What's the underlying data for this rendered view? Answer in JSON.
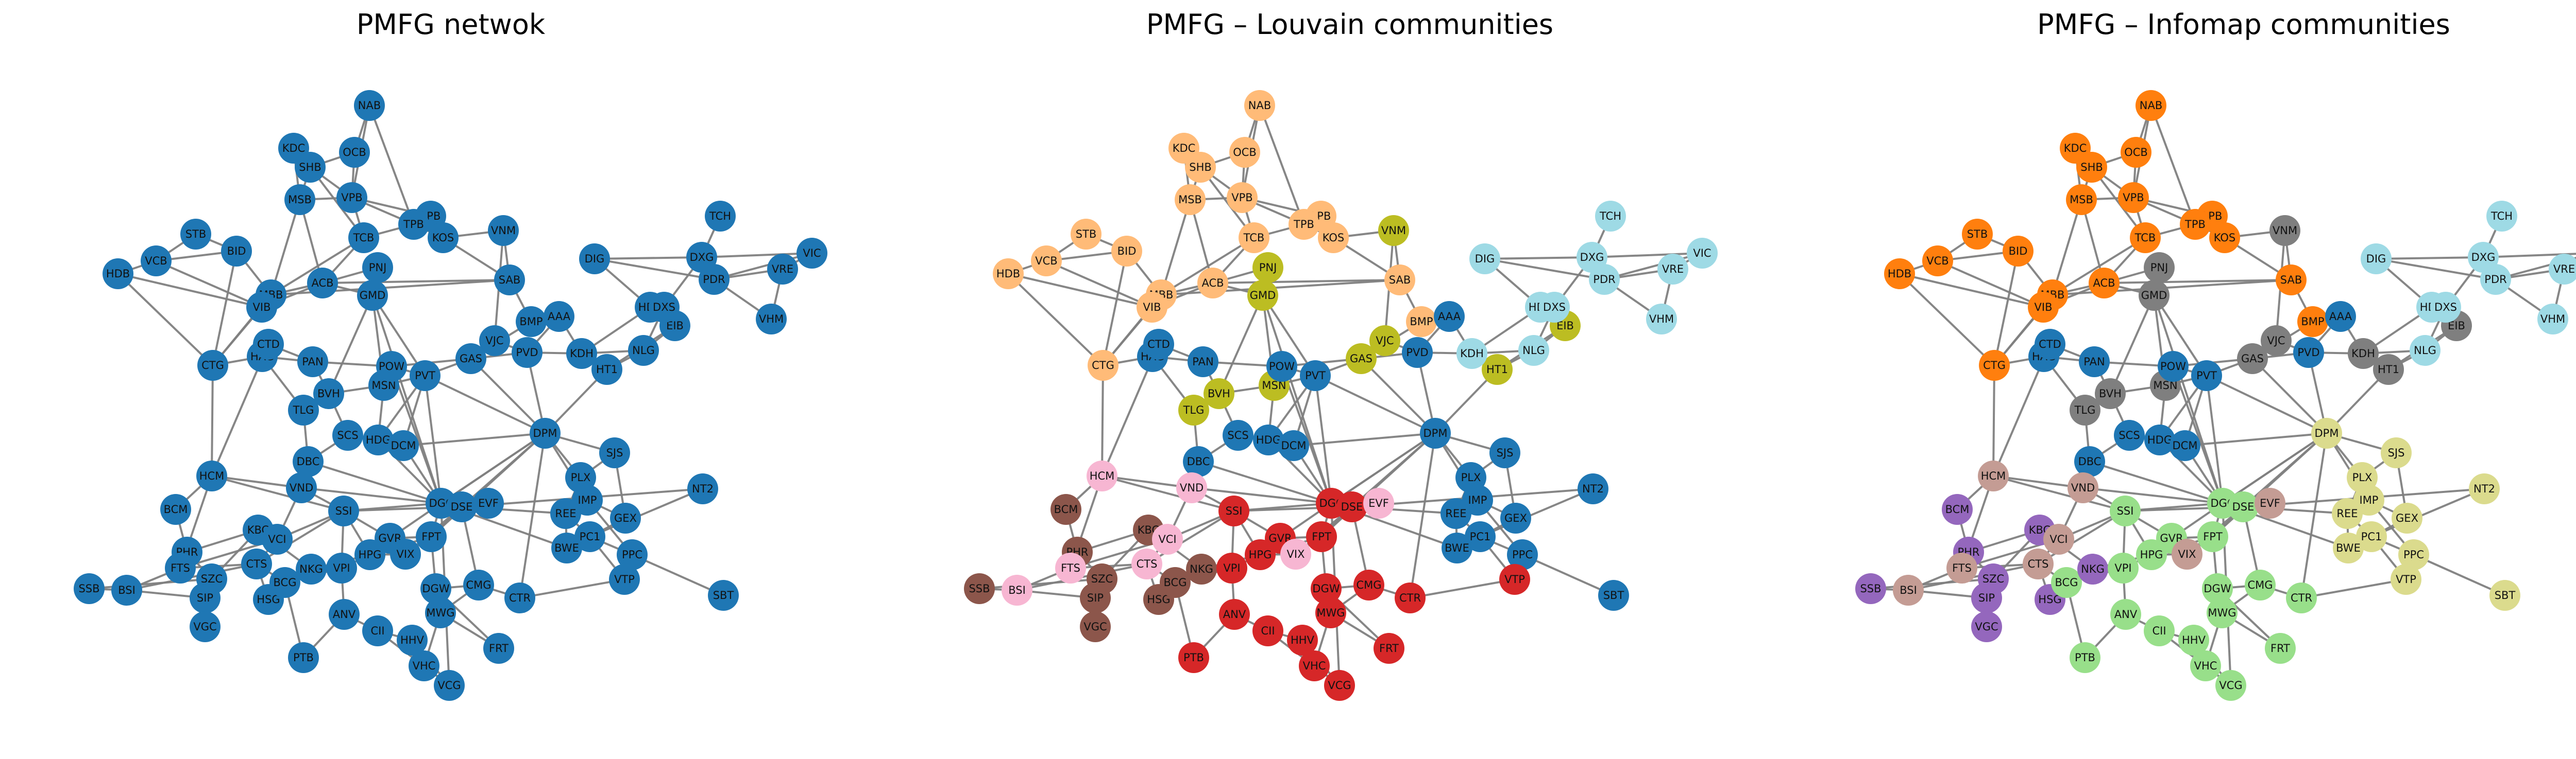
{
  "panels": [
    {
      "title": "PMFG netwok",
      "coloring": "none"
    },
    {
      "title": "PMFG – Louvain communities",
      "coloring": "louvain"
    },
    {
      "title": "PMFG – Infomap communities",
      "coloring": "infomap"
    }
  ],
  "colors": {
    "default": "#1f77b4",
    "tab20": {
      "blue": "#1f77b4",
      "orange": "#ff7f0e",
      "peach": "#ffbb78",
      "lightgreen": "#98df8a",
      "red": "#d62728",
      "purple": "#9467bd",
      "brown": "#8c564b",
      "tan": "#c49c94",
      "pink": "#f7b6d2",
      "gray": "#7f7f7f",
      "olive": "#bcbd22",
      "khaki": "#dbdb8d",
      "cyan": "#9edae5"
    },
    "edge": "#808080"
  },
  "nodes": [
    {
      "id": "NAB",
      "louvain": "peach",
      "infomap": "orange"
    },
    {
      "id": "KDC",
      "louvain": "peach",
      "infomap": "orange"
    },
    {
      "id": "OCB",
      "louvain": "peach",
      "infomap": "orange"
    },
    {
      "id": "SHB",
      "louvain": "peach",
      "infomap": "orange"
    },
    {
      "id": "MSB",
      "louvain": "peach",
      "infomap": "orange"
    },
    {
      "id": "VPB",
      "louvain": "peach",
      "infomap": "orange"
    },
    {
      "id": "LPB",
      "louvain": "peach",
      "infomap": "orange"
    },
    {
      "id": "TPB",
      "louvain": "peach",
      "infomap": "orange"
    },
    {
      "id": "TCB",
      "louvain": "peach",
      "infomap": "orange"
    },
    {
      "id": "KOS",
      "louvain": "peach",
      "infomap": "orange"
    },
    {
      "id": "STB",
      "louvain": "peach",
      "infomap": "orange"
    },
    {
      "id": "BID",
      "louvain": "peach",
      "infomap": "orange"
    },
    {
      "id": "VCB",
      "louvain": "peach",
      "infomap": "orange"
    },
    {
      "id": "HDB",
      "louvain": "peach",
      "infomap": "orange"
    },
    {
      "id": "MBB",
      "louvain": "peach",
      "infomap": "orange"
    },
    {
      "id": "VIB",
      "louvain": "peach",
      "infomap": "orange"
    },
    {
      "id": "ACB",
      "louvain": "peach",
      "infomap": "orange"
    },
    {
      "id": "SAB",
      "louvain": "peach",
      "infomap": "orange"
    },
    {
      "id": "BMP",
      "louvain": "peach",
      "infomap": "orange"
    },
    {
      "id": "CTG",
      "louvain": "peach",
      "infomap": "orange"
    },
    {
      "id": "VNM",
      "louvain": "olive",
      "infomap": "gray"
    },
    {
      "id": "PNJ",
      "louvain": "olive",
      "infomap": "gray"
    },
    {
      "id": "GMD",
      "louvain": "olive",
      "infomap": "gray"
    },
    {
      "id": "VJC",
      "louvain": "olive",
      "infomap": "gray"
    },
    {
      "id": "GAS",
      "louvain": "olive",
      "infomap": "gray"
    },
    {
      "id": "BVH",
      "louvain": "olive",
      "infomap": "gray"
    },
    {
      "id": "TLG",
      "louvain": "olive",
      "infomap": "gray"
    },
    {
      "id": "MSN",
      "louvain": "olive",
      "infomap": "gray"
    },
    {
      "id": "HT1",
      "louvain": "olive",
      "infomap": "gray"
    },
    {
      "id": "EIB",
      "louvain": "olive",
      "infomap": "gray"
    },
    {
      "id": "KDH",
      "louvain": "cyan",
      "infomap": "gray"
    },
    {
      "id": "AAA",
      "louvain": "blue",
      "infomap": "blue"
    },
    {
      "id": "PVD",
      "louvain": "blue",
      "infomap": "blue"
    },
    {
      "id": "TCH",
      "louvain": "cyan",
      "infomap": "cyan"
    },
    {
      "id": "DIG",
      "louvain": "cyan",
      "infomap": "cyan"
    },
    {
      "id": "DXG",
      "louvain": "cyan",
      "infomap": "cyan"
    },
    {
      "id": "VIC",
      "louvain": "cyan",
      "infomap": "cyan"
    },
    {
      "id": "PDR",
      "louvain": "cyan",
      "infomap": "cyan"
    },
    {
      "id": "VRE",
      "louvain": "cyan",
      "infomap": "cyan"
    },
    {
      "id": "HDC",
      "louvain": "cyan",
      "infomap": "cyan"
    },
    {
      "id": "DXS",
      "louvain": "cyan",
      "infomap": "cyan"
    },
    {
      "id": "VHM",
      "louvain": "cyan",
      "infomap": "cyan"
    },
    {
      "id": "NLG",
      "louvain": "cyan",
      "infomap": "cyan"
    },
    {
      "id": "HAG",
      "louvain": "blue",
      "infomap": "blue"
    },
    {
      "id": "CTD",
      "louvain": "blue",
      "infomap": "blue"
    },
    {
      "id": "PAN",
      "louvain": "blue",
      "infomap": "blue"
    },
    {
      "id": "POW",
      "louvain": "blue",
      "infomap": "blue"
    },
    {
      "id": "PVT",
      "louvain": "blue",
      "infomap": "blue"
    },
    {
      "id": "SCS",
      "louvain": "blue",
      "infomap": "blue"
    },
    {
      "id": "HDG",
      "louvain": "blue",
      "infomap": "blue"
    },
    {
      "id": "DCM",
      "louvain": "blue",
      "infomap": "blue"
    },
    {
      "id": "DBC",
      "louvain": "blue",
      "infomap": "blue"
    },
    {
      "id": "DPM",
      "louvain": "blue",
      "infomap": "khaki"
    },
    {
      "id": "SJS",
      "louvain": "blue",
      "infomap": "khaki"
    },
    {
      "id": "PLX",
      "louvain": "blue",
      "infomap": "khaki"
    },
    {
      "id": "NT2",
      "louvain": "blue",
      "infomap": "khaki"
    },
    {
      "id": "IMP",
      "louvain": "blue",
      "infomap": "khaki"
    },
    {
      "id": "REE",
      "louvain": "blue",
      "infomap": "khaki"
    },
    {
      "id": "GEX",
      "louvain": "blue",
      "infomap": "khaki"
    },
    {
      "id": "PC1",
      "louvain": "blue",
      "infomap": "khaki"
    },
    {
      "id": "BWE",
      "louvain": "blue",
      "infomap": "khaki"
    },
    {
      "id": "PPC",
      "louvain": "blue",
      "infomap": "khaki"
    },
    {
      "id": "VTP",
      "louvain": "red",
      "infomap": "khaki"
    },
    {
      "id": "SBT",
      "louvain": "blue",
      "infomap": "khaki"
    },
    {
      "id": "HCM",
      "louvain": "pink",
      "infomap": "tan"
    },
    {
      "id": "VND",
      "louvain": "pink",
      "infomap": "tan"
    },
    {
      "id": "BCM",
      "louvain": "brown",
      "infomap": "purple"
    },
    {
      "id": "KBC",
      "louvain": "brown",
      "infomap": "purple"
    },
    {
      "id": "VCI",
      "louvain": "pink",
      "infomap": "tan"
    },
    {
      "id": "PHR",
      "louvain": "brown",
      "infomap": "purple"
    },
    {
      "id": "FTS",
      "louvain": "pink",
      "infomap": "tan"
    },
    {
      "id": "CTS",
      "louvain": "pink",
      "infomap": "tan"
    },
    {
      "id": "SZC",
      "louvain": "brown",
      "infomap": "purple"
    },
    {
      "id": "SIP",
      "louvain": "brown",
      "infomap": "purple"
    },
    {
      "id": "SSB",
      "louvain": "brown",
      "infomap": "purple"
    },
    {
      "id": "BSI",
      "louvain": "pink",
      "infomap": "tan"
    },
    {
      "id": "VGC",
      "louvain": "brown",
      "infomap": "purple"
    },
    {
      "id": "HSG",
      "louvain": "brown",
      "infomap": "purple"
    },
    {
      "id": "BCG",
      "louvain": "brown",
      "infomap": "lightgreen"
    },
    {
      "id": "NKG",
      "louvain": "brown",
      "infomap": "purple"
    },
    {
      "id": "VPI",
      "louvain": "red",
      "infomap": "lightgreen"
    },
    {
      "id": "SSI",
      "louvain": "red",
      "infomap": "lightgreen"
    },
    {
      "id": "GVR",
      "louvain": "red",
      "infomap": "lightgreen"
    },
    {
      "id": "HPG",
      "louvain": "red",
      "infomap": "lightgreen"
    },
    {
      "id": "VIX",
      "louvain": "pink",
      "infomap": "tan"
    },
    {
      "id": "FPT",
      "louvain": "red",
      "infomap": "lightgreen"
    },
    {
      "id": "DGC",
      "louvain": "red",
      "infomap": "lightgreen"
    },
    {
      "id": "DSE",
      "louvain": "red",
      "infomap": "lightgreen"
    },
    {
      "id": "EVF",
      "louvain": "pink",
      "infomap": "tan"
    },
    {
      "id": "ANV",
      "louvain": "red",
      "infomap": "lightgreen"
    },
    {
      "id": "DGW",
      "louvain": "red",
      "infomap": "lightgreen"
    },
    {
      "id": "CMG",
      "louvain": "red",
      "infomap": "lightgreen"
    },
    {
      "id": "MWG",
      "louvain": "red",
      "infomap": "lightgreen"
    },
    {
      "id": "CTR",
      "louvain": "red",
      "infomap": "lightgreen"
    },
    {
      "id": "CII",
      "louvain": "red",
      "infomap": "lightgreen"
    },
    {
      "id": "HHV",
      "louvain": "red",
      "infomap": "lightgreen"
    },
    {
      "id": "PTB",
      "louvain": "red",
      "infomap": "lightgreen"
    },
    {
      "id": "VHC",
      "louvain": "red",
      "infomap": "lightgreen"
    },
    {
      "id": "FRT",
      "louvain": "red",
      "infomap": "lightgreen"
    },
    {
      "id": "VCG",
      "louvain": "red",
      "infomap": "lightgreen"
    }
  ],
  "edges": [
    [
      "NAB",
      "VPB"
    ],
    [
      "NAB",
      "OCB"
    ],
    [
      "NAB",
      "TPB"
    ],
    [
      "KDC",
      "SHB"
    ],
    [
      "KDC",
      "MSB"
    ],
    [
      "OCB",
      "SHB"
    ],
    [
      "OCB",
      "VPB"
    ],
    [
      "SHB",
      "MSB"
    ],
    [
      "SHB",
      "VPB"
    ],
    [
      "SHB",
      "TCB"
    ],
    [
      "MSB",
      "VPB"
    ],
    [
      "MSB",
      "MBB"
    ],
    [
      "MSB",
      "ACB"
    ],
    [
      "VPB",
      "TCB"
    ],
    [
      "VPB",
      "TPB"
    ],
    [
      "VPB",
      "LPB"
    ],
    [
      "TPB",
      "LPB"
    ],
    [
      "TPB",
      "KOS"
    ],
    [
      "TPB",
      "TCB"
    ],
    [
      "TCB",
      "ACB"
    ],
    [
      "TCB",
      "MBB"
    ],
    [
      "STB",
      "BID"
    ],
    [
      "STB",
      "VCB"
    ],
    [
      "BID",
      "VCB"
    ],
    [
      "BID",
      "MBB"
    ],
    [
      "BID",
      "CTG"
    ],
    [
      "VCB",
      "HDB"
    ],
    [
      "VCB",
      "VIB"
    ],
    [
      "HDB",
      "VIB"
    ],
    [
      "HDB",
      "CTG"
    ],
    [
      "MBB",
      "VIB"
    ],
    [
      "MBB",
      "ACB"
    ],
    [
      "MBB",
      "CTG"
    ],
    [
      "VIB",
      "ACB"
    ],
    [
      "VIB",
      "CTG"
    ],
    [
      "ACB",
      "SAB"
    ],
    [
      "ACB",
      "GMD"
    ],
    [
      "ACB",
      "PNJ"
    ],
    [
      "SAB",
      "VNM"
    ],
    [
      "SAB",
      "BMP"
    ],
    [
      "BMP",
      "AAA"
    ],
    [
      "BMP",
      "GAS"
    ],
    [
      "KOS",
      "SAB"
    ],
    [
      "KOS",
      "VNM"
    ],
    [
      "LPB",
      "KOS"
    ],
    [
      "PNJ",
      "GMD"
    ],
    [
      "GMD",
      "MSN"
    ],
    [
      "GMD",
      "PVT"
    ],
    [
      "GMD",
      "BVH"
    ],
    [
      "VNM",
      "VJC"
    ],
    [
      "VJC",
      "GAS"
    ],
    [
      "VJC",
      "PVD"
    ],
    [
      "GAS",
      "PVD"
    ],
    [
      "GAS",
      "PVT"
    ],
    [
      "GAS",
      "POW"
    ],
    [
      "GAS",
      "DPM"
    ],
    [
      "PVD",
      "AAA"
    ],
    [
      "PVD",
      "KDH"
    ],
    [
      "PVD",
      "DPM"
    ],
    [
      "AAA",
      "KDH"
    ],
    [
      "KDH",
      "HDC"
    ],
    [
      "KDH",
      "NLG"
    ],
    [
      "KDH",
      "HT1"
    ],
    [
      "HT1",
      "EIB"
    ],
    [
      "HT1",
      "NLG"
    ],
    [
      "HT1",
      "DPM"
    ],
    [
      "HDC",
      "DXS"
    ],
    [
      "HDC",
      "EIB"
    ],
    [
      "DXS",
      "DXG"
    ],
    [
      "DXS",
      "NLG"
    ],
    [
      "DXG",
      "TCH"
    ],
    [
      "DXG",
      "PDR"
    ],
    [
      "DXG",
      "DIG"
    ],
    [
      "DXG",
      "VIC"
    ],
    [
      "PDR",
      "VRE"
    ],
    [
      "PDR",
      "VIC"
    ],
    [
      "PDR",
      "VHM"
    ],
    [
      "PDR",
      "DIG"
    ],
    [
      "VRE",
      "VIC"
    ],
    [
      "VRE",
      "VHM"
    ],
    [
      "DIG",
      "HDC"
    ],
    [
      "HDC",
      "EIB"
    ],
    [
      "NLG",
      "EIB"
    ],
    [
      "CTG",
      "HAG"
    ],
    [
      "HAG",
      "CTD"
    ],
    [
      "HAG",
      "PAN"
    ],
    [
      "HAG",
      "TLG"
    ],
    [
      "CTD",
      "PAN"
    ],
    [
      "CTD",
      "HCM"
    ],
    [
      "PAN",
      "POW"
    ],
    [
      "PAN",
      "BVH"
    ],
    [
      "POW",
      "PVT"
    ],
    [
      "POW",
      "MSN"
    ],
    [
      "PVT",
      "MSN"
    ],
    [
      "PVT",
      "DPM"
    ],
    [
      "PVT",
      "DCM"
    ],
    [
      "PVT",
      "HDG"
    ],
    [
      "BVH",
      "MSN"
    ],
    [
      "BVH",
      "TLG"
    ],
    [
      "BVH",
      "SCS"
    ],
    [
      "TLG",
      "DBC"
    ],
    [
      "MSN",
      "HDG"
    ],
    [
      "SCS",
      "HDG"
    ],
    [
      "SCS",
      "DBC"
    ],
    [
      "HDG",
      "DCM"
    ],
    [
      "DCM",
      "DPM"
    ],
    [
      "DCM",
      "DGC"
    ],
    [
      "DPM",
      "SJS"
    ],
    [
      "DPM",
      "PLX"
    ],
    [
      "DPM",
      "IMP"
    ],
    [
      "DPM",
      "DGC"
    ],
    [
      "DPM",
      "DSE"
    ],
    [
      "SJS",
      "PLX"
    ],
    [
      "SJS",
      "GEX"
    ],
    [
      "PLX",
      "REE"
    ],
    [
      "REE",
      "IMP"
    ],
    [
      "REE",
      "PC1"
    ],
    [
      "IMP",
      "GEX"
    ],
    [
      "IMP",
      "PPC"
    ],
    [
      "GEX",
      "PC1"
    ],
    [
      "PC1",
      "PPC"
    ],
    [
      "PC1",
      "VTP"
    ],
    [
      "PPC",
      "VTP"
    ],
    [
      "PPC",
      "SBT"
    ],
    [
      "NT2",
      "PC1"
    ],
    [
      "NT2",
      "DSE"
    ],
    [
      "BWE",
      "REE"
    ],
    [
      "BWE",
      "DGC"
    ],
    [
      "HCM",
      "VND"
    ],
    [
      "HCM",
      "SSI"
    ],
    [
      "HCM",
      "FTS"
    ],
    [
      "HCM",
      "BCM"
    ],
    [
      "VND",
      "SSI"
    ],
    [
      "VND",
      "VCI"
    ],
    [
      "SSI",
      "VCI"
    ],
    [
      "SSI",
      "GVR"
    ],
    [
      "SSI",
      "HPG"
    ],
    [
      "SSI",
      "DGC"
    ],
    [
      "SSI",
      "CTS"
    ],
    [
      "SSI",
      "VPI"
    ],
    [
      "VCI",
      "CTS"
    ],
    [
      "VCI",
      "FTS"
    ],
    [
      "VCI",
      "KBC"
    ],
    [
      "KBC",
      "PHR"
    ],
    [
      "KBC",
      "SZC"
    ],
    [
      "KBC",
      "NKG"
    ],
    [
      "PHR",
      "SZC"
    ],
    [
      "PHR",
      "FTS"
    ],
    [
      "PHR",
      "BCM"
    ],
    [
      "FTS",
      "CTS"
    ],
    [
      "FTS",
      "BSI"
    ],
    [
      "CTS",
      "BSI"
    ],
    [
      "CTS",
      "HSG"
    ],
    [
      "CTS",
      "BCG"
    ],
    [
      "SZC",
      "SIP"
    ],
    [
      "SZC",
      "VGC"
    ],
    [
      "SIP",
      "VGC"
    ],
    [
      "SIP",
      "BSI"
    ],
    [
      "SSB",
      "BSI"
    ],
    [
      "SSB",
      "SZC"
    ],
    [
      "HSG",
      "NKG"
    ],
    [
      "HSG",
      "BCG"
    ],
    [
      "NKG",
      "HPG"
    ],
    [
      "NKG",
      "VPI"
    ],
    [
      "BCG",
      "VPI"
    ],
    [
      "VPI",
      "HPG"
    ],
    [
      "VPI",
      "ANV"
    ],
    [
      "GVR",
      "HPG"
    ],
    [
      "GVR",
      "FPT"
    ],
    [
      "GVR",
      "DGC"
    ],
    [
      "GVR",
      "VIX"
    ],
    [
      "HPG",
      "VIX"
    ],
    [
      "HPG",
      "FPT"
    ],
    [
      "FPT",
      "DGC"
    ],
    [
      "FPT",
      "DSE"
    ],
    [
      "FPT",
      "VIX"
    ],
    [
      "FPT",
      "DGW"
    ],
    [
      "DGC",
      "DSE"
    ],
    [
      "DGC",
      "EVF"
    ],
    [
      "DSE",
      "EVF"
    ],
    [
      "DSE",
      "VIX"
    ],
    [
      "DSE",
      "CMG"
    ],
    [
      "DGW",
      "MWG"
    ],
    [
      "DGW",
      "FRT"
    ],
    [
      "DGW",
      "CMG"
    ],
    [
      "MWG",
      "CMG"
    ],
    [
      "MWG",
      "VHC"
    ],
    [
      "CMG",
      "CTR"
    ],
    [
      "CTR",
      "VTP"
    ],
    [
      "ANV",
      "CII"
    ],
    [
      "ANV",
      "PTB"
    ],
    [
      "CII",
      "HHV"
    ],
    [
      "HHV",
      "VHC"
    ],
    [
      "VHC",
      "VCG"
    ],
    [
      "HHV",
      "VCG"
    ],
    [
      "CII",
      "VCG"
    ],
    [
      "PTB",
      "BCG"
    ],
    [
      "FRT",
      "MWG"
    ],
    [
      "VCG",
      "DGC"
    ],
    [
      "CTG",
      "HCM"
    ],
    [
      "DBC",
      "VND"
    ],
    [
      "DPM",
      "DGC"
    ],
    [
      "SAB",
      "MBB"
    ],
    [
      "GMD",
      "DGC"
    ],
    [
      "PVT",
      "DGC"
    ],
    [
      "DPM",
      "FPT"
    ],
    [
      "DSE",
      "REE"
    ],
    [
      "DBC",
      "DGC"
    ],
    [
      "HDG",
      "DGC"
    ],
    [
      "POW",
      "DGC"
    ],
    [
      "SSI",
      "DSE"
    ],
    [
      "VND",
      "DGC"
    ],
    [
      "DPM",
      "CTR"
    ]
  ]
}
